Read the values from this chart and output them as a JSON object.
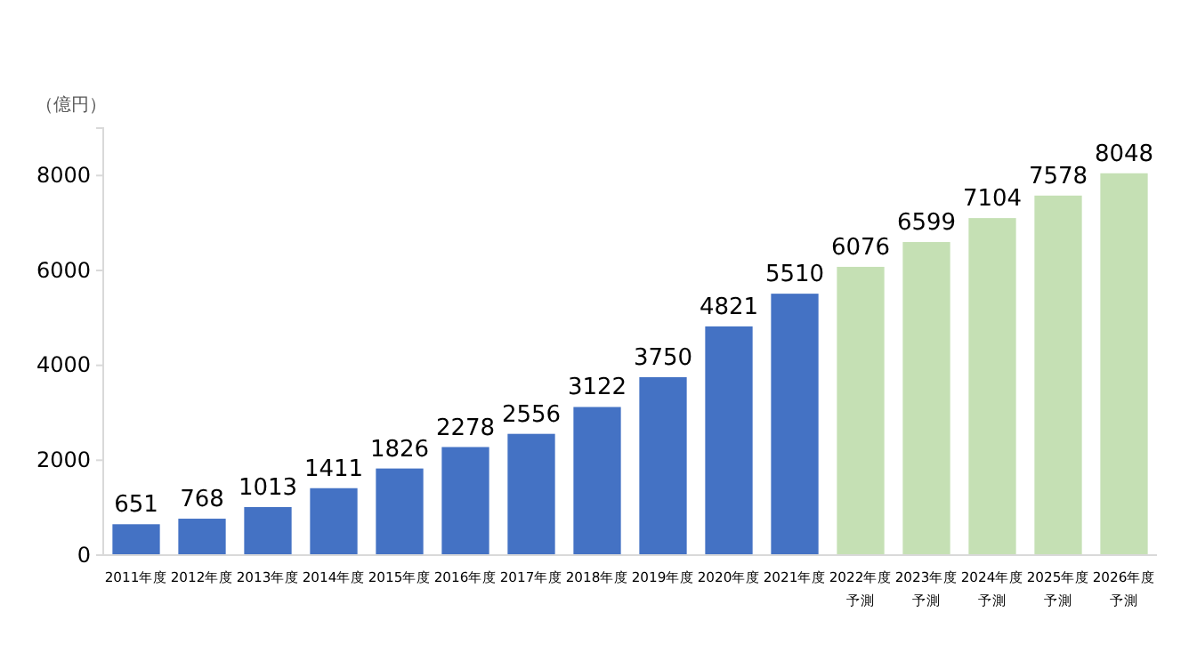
{
  "chart_data": {
    "type": "bar",
    "ylabel": "（億円）",
    "categories": [
      "2011年度",
      "2012年度",
      "2013年度",
      "2014年度",
      "2015年度",
      "2016年度",
      "2017年度",
      "2018年度",
      "2019年度",
      "2020年度",
      "2021年度",
      "2022年度予測",
      "2023年度予測",
      "2024年度予測",
      "2025年度予測",
      "2026年度予測"
    ],
    "values": [
      651,
      768,
      1013,
      1411,
      1826,
      2278,
      2556,
      3122,
      3750,
      4821,
      5510,
      6076,
      6599,
      7104,
      7578,
      8048
    ],
    "colors": [
      "#4472c4",
      "#4472c4",
      "#4472c4",
      "#4472c4",
      "#4472c4",
      "#4472c4",
      "#4472c4",
      "#4472c4",
      "#4472c4",
      "#4472c4",
      "#4472c4",
      "#c5e0b4",
      "#c5e0b4",
      "#c5e0b4",
      "#c5e0b4",
      "#c5e0b4"
    ],
    "ylim": [
      0,
      9000
    ],
    "yticks": [
      0,
      2000,
      4000,
      6000,
      8000
    ],
    "grid": false,
    "data_labels": true
  }
}
